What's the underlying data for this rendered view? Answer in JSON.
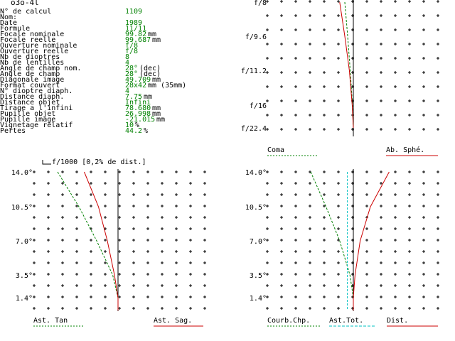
{
  "title": "o3o-4l",
  "params": [
    {
      "label": "N° de calcul",
      "value": "1109",
      "unit": ""
    },
    {
      "label": "Nom:",
      "value": "",
      "unit": ""
    },
    {
      "label": "Date",
      "value": "1989",
      "unit": ""
    },
    {
      "label": "Formule",
      "value": "11/11",
      "unit": ""
    },
    {
      "label": "Focale nominale",
      "value": "99.82",
      "unit": "mm"
    },
    {
      "label": "Focale reelle",
      "value": "99.687",
      "unit": "mm"
    },
    {
      "label": "Ouverture nominale",
      "value": "f/8",
      "unit": ""
    },
    {
      "label": "Ouverture reelle",
      "value": "f/8",
      "unit": ""
    },
    {
      "label": "Nb de dioptres",
      "value": "8",
      "unit": ""
    },
    {
      "label": "Nb de lentilles",
      "value": "4",
      "unit": ""
    },
    {
      "label": "Angle de champ nom.",
      "value": "28°",
      "unit": "(dec)"
    },
    {
      "label": "Angle de champ",
      "value": "28°",
      "unit": "(dec)"
    },
    {
      "label": "Diagonale image",
      "value": "49.709",
      "unit": "mm"
    },
    {
      "label": "Format couvert",
      "value": "28x42",
      "unit": "mm (35mm)"
    },
    {
      "label": "N° dioptre diaph.",
      "value": "4",
      "unit": ""
    },
    {
      "label": "Distance diaph.",
      "value": "7.75",
      "unit": "mm"
    },
    {
      "label": "Distance objet",
      "value": "Infini",
      "unit": ""
    },
    {
      "label": "Tirage a l'infini",
      "value": "78.680",
      "unit": "mm"
    },
    {
      "label": "Pupille objet",
      "value": "26.998",
      "unit": "mm"
    },
    {
      "label": "Pupille image",
      "value": "-21.015",
      "unit": "mm"
    },
    {
      "label": "Vignetage relatif",
      "value": "10",
      "unit": "%"
    },
    {
      "label": "Pertes",
      "value": "44.2",
      "unit": "%"
    }
  ],
  "scale_note": "f/1000 [0,2% de dist.]",
  "colors": {
    "green": "#008000",
    "red": "#cc0000",
    "cyan": "#00c0c0",
    "black": "#000000"
  },
  "chart_data": [
    {
      "type": "line",
      "name": "spherical-coma",
      "y_tick_labels": [
        "f/8",
        "f/9.6",
        "f/11.2",
        "f/16",
        "f/22.4"
      ],
      "legend": [
        "Coma",
        "Ab. Sphé."
      ],
      "series": [
        {
          "name": "Coma",
          "style": "dashed",
          "color": "#008000",
          "points": [
            [
              -0.3,
              8
            ],
            [
              -0.2,
              9.6
            ],
            [
              -0.11,
              11.2
            ],
            [
              -0.03,
              16
            ],
            [
              0,
              22.4
            ]
          ]
        },
        {
          "name": "Ab. Sphé.",
          "style": "solid",
          "color": "#cc0000",
          "points": [
            [
              -0.48,
              8
            ],
            [
              -0.3,
              9.6
            ],
            [
              -0.14,
              11.2
            ],
            [
              -0.04,
              16
            ],
            [
              0,
              22.4
            ]
          ]
        }
      ]
    },
    {
      "type": "line",
      "name": "astigmatism",
      "y_tick_labels": [
        "14.0°",
        "10.5°",
        "7.0°",
        "3.5°",
        "1.4°"
      ],
      "legend": [
        "Ast. Tan",
        "Ast. Sag."
      ],
      "series": [
        {
          "name": "Ast. Tan",
          "style": "dashed",
          "color": "#008000",
          "points": [
            [
              -3.4,
              14.0
            ],
            [
              -2.2,
              10.5
            ],
            [
              -1.2,
              7.0
            ],
            [
              -0.3,
              3.5
            ],
            [
              0,
              1.4
            ]
          ]
        },
        {
          "name": "Ast. Sag.",
          "style": "solid",
          "color": "#cc0000",
          "points": [
            [
              -1.9,
              14.0
            ],
            [
              -1.1,
              10.5
            ],
            [
              -0.6,
              7.0
            ],
            [
              -0.2,
              3.5
            ],
            [
              0,
              1.4
            ]
          ]
        }
      ]
    },
    {
      "type": "line",
      "name": "curvature-distortion",
      "y_tick_labels": [
        "14.0°",
        "10.5°",
        "7.0°",
        "3.5°",
        "1.4°"
      ],
      "legend": [
        "Courb.Chp.",
        "Ast.Tot.",
        "Dist."
      ],
      "series": [
        {
          "name": "Courb.Chp.",
          "style": "dashed",
          "color": "#008000",
          "points": [
            [
              -2.5,
              14.0
            ],
            [
              -1.6,
              10.5
            ],
            [
              -0.8,
              7.0
            ],
            [
              -0.2,
              3.5
            ],
            [
              0,
              1.4
            ]
          ]
        },
        {
          "name": "Ast.Tot.",
          "style": "dashed",
          "color": "#00c0c0",
          "points": [
            [
              -0.35,
              14.0
            ],
            [
              -0.35,
              10.5
            ],
            [
              -0.35,
              7.0
            ],
            [
              -0.35,
              3.5
            ],
            [
              -0.35,
              1.4
            ]
          ]
        },
        {
          "name": "Dist.",
          "style": "solid",
          "color": "#cc0000",
          "points": [
            [
              2.1,
              14.0
            ],
            [
              1.0,
              10.5
            ],
            [
              0.4,
              7.0
            ],
            [
              0.1,
              3.5
            ],
            [
              0,
              1.4
            ]
          ]
        }
      ]
    }
  ]
}
